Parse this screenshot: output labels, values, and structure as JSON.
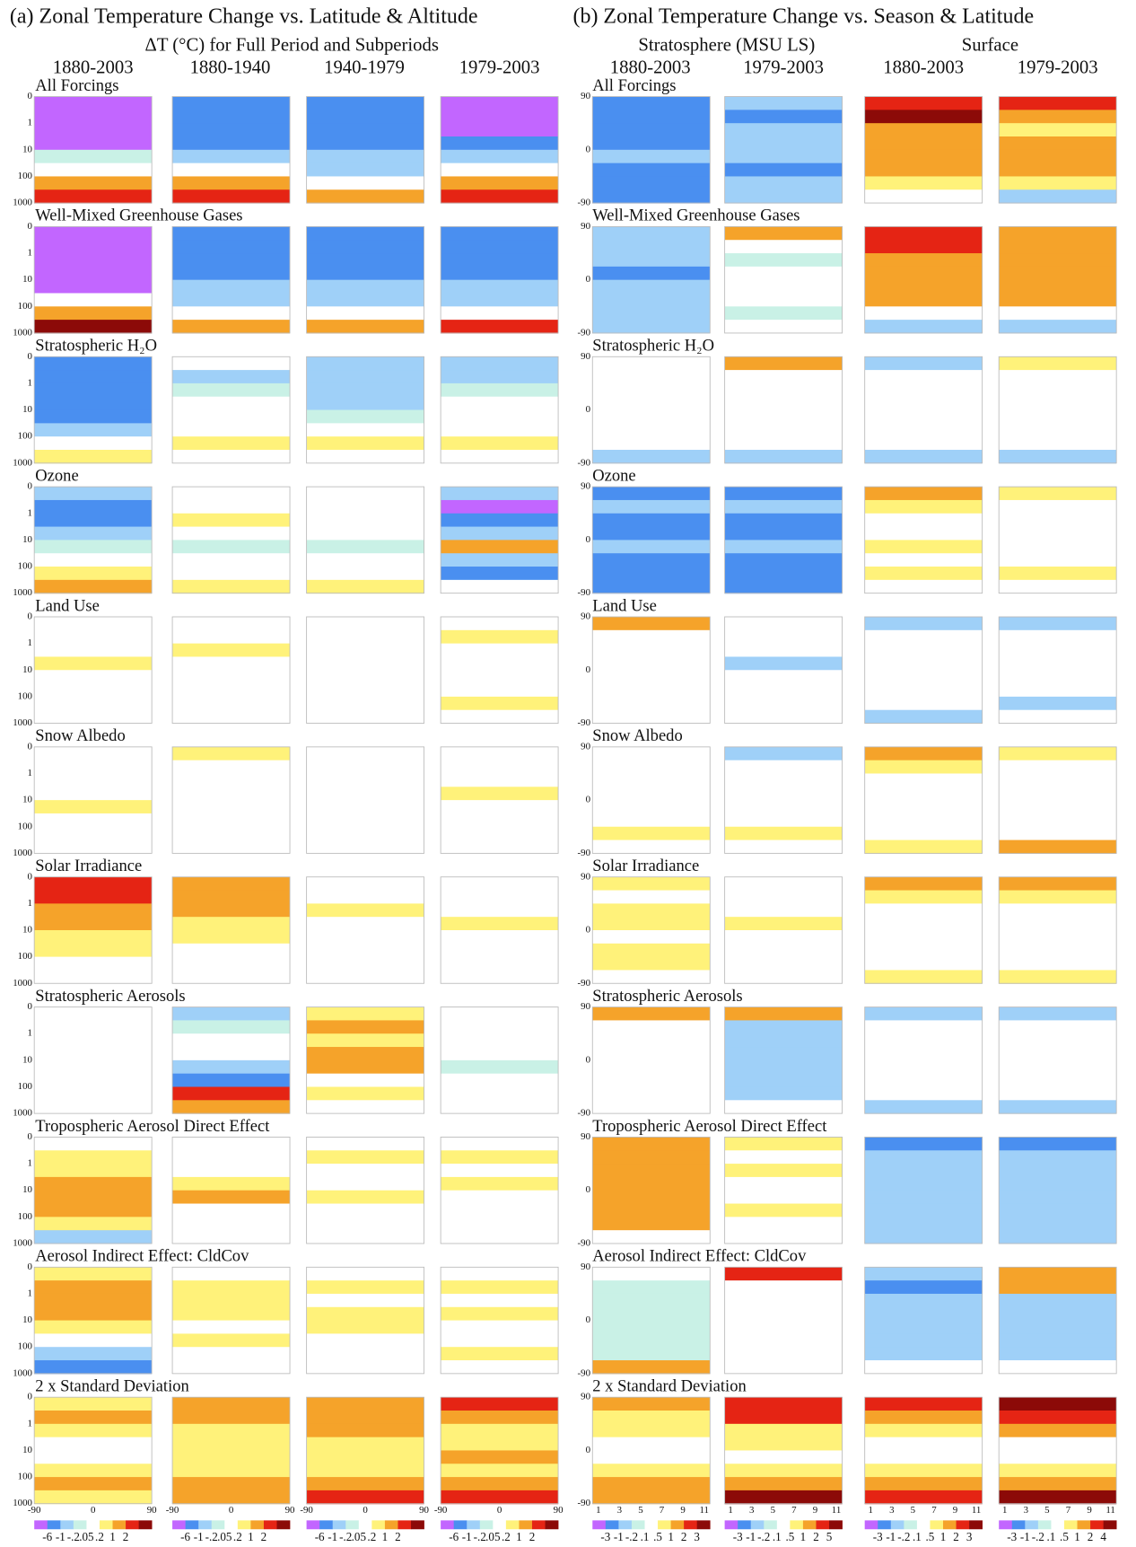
{
  "panel_a": {
    "title": "(a) Zonal Temperature Change vs. Latitude & Altitude",
    "subtitle": "ΔT (°C) for Full Period and Subperiods",
    "columns": [
      "1880-2003",
      "1880-1940",
      "1940-1979",
      "1979-2003"
    ],
    "y_ticks": [
      "0",
      "1",
      "10",
      "100",
      "1000"
    ],
    "x_ticks": [
      "-90",
      "0",
      "90"
    ],
    "colorbar": [
      "-6",
      "-1",
      "-.2",
      ".05",
      ".2",
      "1",
      "2"
    ]
  },
  "panel_b": {
    "title": "(b) Zonal Temperature Change vs. Season & Latitude",
    "groups": [
      "Stratosphere (MSU LS)",
      "Surface"
    ],
    "columns": [
      "1880-2003",
      "1979-2003",
      "1880-2003",
      "1979-2003"
    ],
    "y_ticks": [
      "90",
      "0",
      "-90"
    ],
    "x_ticks": [
      "1",
      "3",
      "5",
      "7",
      "9",
      "11"
    ],
    "colorbars": [
      [
        "-3",
        "-1",
        "-.2",
        ".1",
        ".5",
        "1",
        "2",
        "3"
      ],
      [
        "-3",
        "-1",
        "-.2",
        ".1",
        ".5",
        "1",
        "2",
        "5"
      ],
      [
        "-3",
        "-1",
        "-.2",
        ".1",
        ".5",
        "1",
        "2",
        "3"
      ],
      [
        "-3",
        "-1",
        "-.2",
        ".1",
        ".5",
        "1",
        "2",
        "4"
      ]
    ]
  },
  "rows": [
    "All Forcings",
    "Well-Mixed Greenhouse Gases",
    "Stratospheric H₂O",
    "Ozone",
    "Land Use",
    "Snow Albedo",
    "Solar Irradiance",
    "Stratospheric Aerosols",
    "Tropospheric Aerosol Direct Effect",
    "Aerosol Indirect Effect: CldCov",
    "2 x Standard Deviation"
  ]
}
